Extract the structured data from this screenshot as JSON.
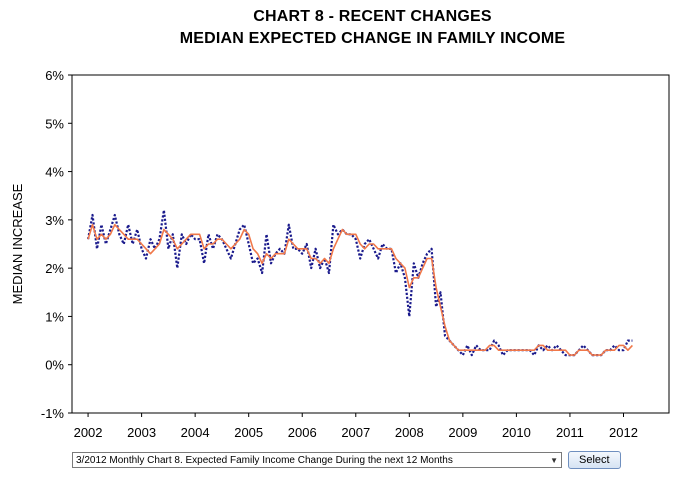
{
  "chart_data": {
    "type": "line",
    "title": "CHART 8 - RECENT CHANGES",
    "subtitle": "MEDIAN EXPECTED CHANGE IN FAMILY INCOME",
    "ylabel": "MEDIAN INCREASE",
    "xlabel": "",
    "ylim": [
      -1,
      6
    ],
    "xlim": [
      2001.7,
      2012.85
    ],
    "y_ticks": [
      "-1%",
      "0%",
      "1%",
      "2%",
      "3%",
      "4%",
      "5%",
      "6%"
    ],
    "x_ticks": [
      "2002",
      "2003",
      "2004",
      "2005",
      "2006",
      "2007",
      "2008",
      "2009",
      "2010",
      "2011",
      "2012"
    ],
    "grid": false,
    "legend": "none",
    "series": [
      {
        "style": "dotted",
        "color": "#1a1a8c",
        "x": [
          2002.0,
          2002.083,
          2002.167,
          2002.25,
          2002.333,
          2002.417,
          2002.5,
          2002.583,
          2002.667,
          2002.75,
          2002.833,
          2002.917,
          2003.0,
          2003.083,
          2003.167,
          2003.25,
          2003.333,
          2003.417,
          2003.5,
          2003.583,
          2003.667,
          2003.75,
          2003.833,
          2003.917,
          2004.0,
          2004.083,
          2004.167,
          2004.25,
          2004.333,
          2004.417,
          2004.5,
          2004.583,
          2004.667,
          2004.75,
          2004.833,
          2004.917,
          2005.0,
          2005.083,
          2005.167,
          2005.25,
          2005.333,
          2005.417,
          2005.5,
          2005.583,
          2005.667,
          2005.75,
          2005.833,
          2005.917,
          2006.0,
          2006.083,
          2006.167,
          2006.25,
          2006.333,
          2006.417,
          2006.5,
          2006.583,
          2006.667,
          2006.75,
          2006.833,
          2006.917,
          2007.0,
          2007.083,
          2007.167,
          2007.25,
          2007.333,
          2007.417,
          2007.5,
          2007.583,
          2007.667,
          2007.75,
          2007.833,
          2007.917,
          2008.0,
          2008.083,
          2008.167,
          2008.25,
          2008.333,
          2008.417,
          2008.5,
          2008.583,
          2008.667,
          2008.75,
          2008.833,
          2008.917,
          2009.0,
          2009.083,
          2009.167,
          2009.25,
          2009.333,
          2009.417,
          2009.5,
          2009.583,
          2009.667,
          2009.75,
          2009.833,
          2009.917,
          2010.0,
          2010.083,
          2010.167,
          2010.25,
          2010.333,
          2010.417,
          2010.5,
          2010.583,
          2010.667,
          2010.75,
          2010.833,
          2010.917,
          2011.0,
          2011.083,
          2011.167,
          2011.25,
          2011.333,
          2011.417,
          2011.5,
          2011.583,
          2011.667,
          2011.75,
          2011.833,
          2011.917,
          2012.0,
          2012.083,
          2012.167
        ],
        "values": [
          2.6,
          3.1,
          2.4,
          2.9,
          2.5,
          2.8,
          3.1,
          2.7,
          2.5,
          2.9,
          2.5,
          2.8,
          2.4,
          2.2,
          2.6,
          2.4,
          2.6,
          3.2,
          2.4,
          2.7,
          2.0,
          2.7,
          2.5,
          2.7,
          2.6,
          2.6,
          2.1,
          2.7,
          2.4,
          2.7,
          2.6,
          2.4,
          2.2,
          2.5,
          2.8,
          2.9,
          2.5,
          2.1,
          2.2,
          1.9,
          2.7,
          2.1,
          2.3,
          2.4,
          2.3,
          2.9,
          2.4,
          2.4,
          2.3,
          2.5,
          2.0,
          2.4,
          2.0,
          2.2,
          1.9,
          2.9,
          2.7,
          2.8,
          2.7,
          2.7,
          2.6,
          2.2,
          2.5,
          2.6,
          2.4,
          2.2,
          2.5,
          2.4,
          2.4,
          1.9,
          2.1,
          1.8,
          1.0,
          2.1,
          1.8,
          2.1,
          2.3,
          2.4,
          1.2,
          1.5,
          0.6,
          0.5,
          0.4,
          0.3,
          0.2,
          0.4,
          0.2,
          0.4,
          0.3,
          0.3,
          0.3,
          0.5,
          0.4,
          0.2,
          0.3,
          0.3,
          0.3,
          0.3,
          0.3,
          0.3,
          0.2,
          0.4,
          0.3,
          0.4,
          0.3,
          0.4,
          0.3,
          0.2,
          0.2,
          0.2,
          0.3,
          0.4,
          0.3,
          0.2,
          0.2,
          0.2,
          0.3,
          0.3,
          0.4,
          0.3,
          0.3,
          0.5,
          0.5
        ]
      },
      {
        "style": "solid",
        "color": "#f0784a",
        "x": [
          2002.0,
          2002.083,
          2002.167,
          2002.25,
          2002.333,
          2002.417,
          2002.5,
          2002.583,
          2002.667,
          2002.75,
          2002.833,
          2002.917,
          2003.0,
          2003.083,
          2003.167,
          2003.25,
          2003.333,
          2003.417,
          2003.5,
          2003.583,
          2003.667,
          2003.75,
          2003.833,
          2003.917,
          2004.0,
          2004.083,
          2004.167,
          2004.25,
          2004.333,
          2004.417,
          2004.5,
          2004.583,
          2004.667,
          2004.75,
          2004.833,
          2004.917,
          2005.0,
          2005.083,
          2005.167,
          2005.25,
          2005.333,
          2005.417,
          2005.5,
          2005.583,
          2005.667,
          2005.75,
          2005.833,
          2005.917,
          2006.0,
          2006.083,
          2006.167,
          2006.25,
          2006.333,
          2006.417,
          2006.5,
          2006.583,
          2006.667,
          2006.75,
          2006.833,
          2006.917,
          2007.0,
          2007.083,
          2007.167,
          2007.25,
          2007.333,
          2007.417,
          2007.5,
          2007.583,
          2007.667,
          2007.75,
          2007.833,
          2007.917,
          2008.0,
          2008.083,
          2008.167,
          2008.25,
          2008.333,
          2008.417,
          2008.5,
          2008.583,
          2008.667,
          2008.75,
          2008.833,
          2008.917,
          2009.0,
          2009.083,
          2009.167,
          2009.25,
          2009.333,
          2009.417,
          2009.5,
          2009.583,
          2009.667,
          2009.75,
          2009.833,
          2009.917,
          2010.0,
          2010.083,
          2010.167,
          2010.25,
          2010.333,
          2010.417,
          2010.5,
          2010.583,
          2010.667,
          2010.75,
          2010.833,
          2010.917,
          2011.0,
          2011.083,
          2011.167,
          2011.25,
          2011.333,
          2011.417,
          2011.5,
          2011.583,
          2011.667,
          2011.75,
          2011.833,
          2011.917,
          2012.0,
          2012.083,
          2012.167
        ],
        "values": [
          2.6,
          2.9,
          2.6,
          2.7,
          2.6,
          2.7,
          2.9,
          2.8,
          2.7,
          2.6,
          2.6,
          2.6,
          2.5,
          2.4,
          2.3,
          2.4,
          2.5,
          2.8,
          2.7,
          2.6,
          2.4,
          2.5,
          2.6,
          2.7,
          2.7,
          2.7,
          2.4,
          2.5,
          2.5,
          2.6,
          2.6,
          2.5,
          2.4,
          2.5,
          2.6,
          2.8,
          2.7,
          2.4,
          2.3,
          2.1,
          2.3,
          2.2,
          2.3,
          2.3,
          2.3,
          2.6,
          2.5,
          2.4,
          2.4,
          2.4,
          2.2,
          2.2,
          2.1,
          2.2,
          2.1,
          2.4,
          2.6,
          2.8,
          2.7,
          2.7,
          2.7,
          2.5,
          2.4,
          2.5,
          2.5,
          2.4,
          2.4,
          2.4,
          2.4,
          2.2,
          2.1,
          2.0,
          1.6,
          1.8,
          1.8,
          2.0,
          2.2,
          2.2,
          1.6,
          1.2,
          0.8,
          0.5,
          0.4,
          0.3,
          0.3,
          0.3,
          0.3,
          0.3,
          0.3,
          0.3,
          0.4,
          0.4,
          0.3,
          0.3,
          0.3,
          0.3,
          0.3,
          0.3,
          0.3,
          0.3,
          0.3,
          0.4,
          0.4,
          0.3,
          0.3,
          0.3,
          0.3,
          0.3,
          0.2,
          0.2,
          0.3,
          0.3,
          0.3,
          0.2,
          0.2,
          0.2,
          0.3,
          0.3,
          0.3,
          0.4,
          0.4,
          0.3,
          0.4
        ]
      }
    ]
  },
  "controls": {
    "select_value": "3/2012 Monthly Chart 8. Expected Family Income Change During the next 12 Months",
    "select_button_label": "Select"
  }
}
